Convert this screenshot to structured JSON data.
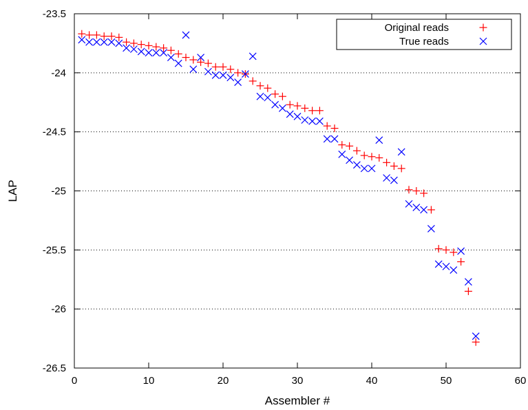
{
  "chart_data": {
    "type": "scatter",
    "xlabel": "Assembler #",
    "ylabel": "LAP",
    "xlim": [
      0,
      60
    ],
    "ylim": [
      -26.5,
      -23.5
    ],
    "x_ticks": [
      "0",
      "10",
      "20",
      "30",
      "40",
      "50",
      "60"
    ],
    "y_ticks": [
      "-23.5",
      "-24",
      "-24.5",
      "-25",
      "-25.5",
      "-26",
      "-26.5"
    ],
    "grid": "horizontal dotted",
    "legend_position": "top-right",
    "series": [
      {
        "name": "Original reads",
        "marker": "plus",
        "color": "#ff0000",
        "x": [
          1,
          2,
          3,
          4,
          5,
          6,
          7,
          8,
          9,
          10,
          11,
          12,
          13,
          14,
          15,
          16,
          17,
          18,
          19,
          20,
          21,
          22,
          23,
          24,
          25,
          26,
          27,
          28,
          29,
          30,
          31,
          32,
          33,
          34,
          35,
          36,
          37,
          38,
          39,
          40,
          41,
          42,
          43,
          44,
          45,
          46,
          47,
          48,
          49,
          50,
          51,
          52,
          53,
          54
        ],
        "y": [
          -23.67,
          -23.68,
          -23.68,
          -23.69,
          -23.69,
          -23.7,
          -23.74,
          -23.75,
          -23.76,
          -23.77,
          -23.78,
          -23.79,
          -23.81,
          -23.84,
          -23.87,
          -23.89,
          -23.91,
          -23.92,
          -23.95,
          -23.95,
          -23.97,
          -24.0,
          -24.01,
          -24.07,
          -24.11,
          -24.13,
          -24.18,
          -24.2,
          -24.27,
          -24.28,
          -24.3,
          -24.32,
          -24.32,
          -24.45,
          -24.47,
          -24.61,
          -24.62,
          -24.66,
          -24.7,
          -24.71,
          -24.72,
          -24.76,
          -24.79,
          -24.81,
          -24.99,
          -25.0,
          -25.02,
          -25.16,
          -25.49,
          -25.5,
          -25.52,
          -25.6,
          -25.85,
          -26.28
        ]
      },
      {
        "name": "True reads",
        "marker": "cross",
        "color": "#0000ff",
        "x": [
          1,
          2,
          3,
          4,
          5,
          6,
          7,
          8,
          9,
          10,
          11,
          12,
          13,
          14,
          15,
          16,
          17,
          18,
          19,
          20,
          21,
          22,
          23,
          24,
          25,
          26,
          27,
          28,
          29,
          30,
          31,
          32,
          33,
          34,
          35,
          36,
          37,
          38,
          39,
          40,
          41,
          42,
          43,
          44,
          45,
          46,
          47,
          48,
          49,
          50,
          51,
          52,
          53,
          54
        ],
        "y": [
          -23.72,
          -23.74,
          -23.74,
          -23.74,
          -23.74,
          -23.75,
          -23.79,
          -23.8,
          -23.82,
          -23.83,
          -23.83,
          -23.83,
          -23.87,
          -23.92,
          -23.68,
          -23.97,
          -23.87,
          -23.99,
          -24.02,
          -24.02,
          -24.04,
          -24.08,
          -24.01,
          -23.86,
          -24.2,
          -24.21,
          -24.27,
          -24.3,
          -24.35,
          -24.37,
          -24.4,
          -24.41,
          -24.41,
          -24.56,
          -24.56,
          -24.69,
          -24.74,
          -24.78,
          -24.81,
          -24.81,
          -24.57,
          -24.89,
          -24.91,
          -24.67,
          -25.11,
          -25.14,
          -25.16,
          -25.32,
          -25.62,
          -25.64,
          -25.67,
          -25.51,
          -25.77,
          -26.23
        ]
      }
    ]
  }
}
